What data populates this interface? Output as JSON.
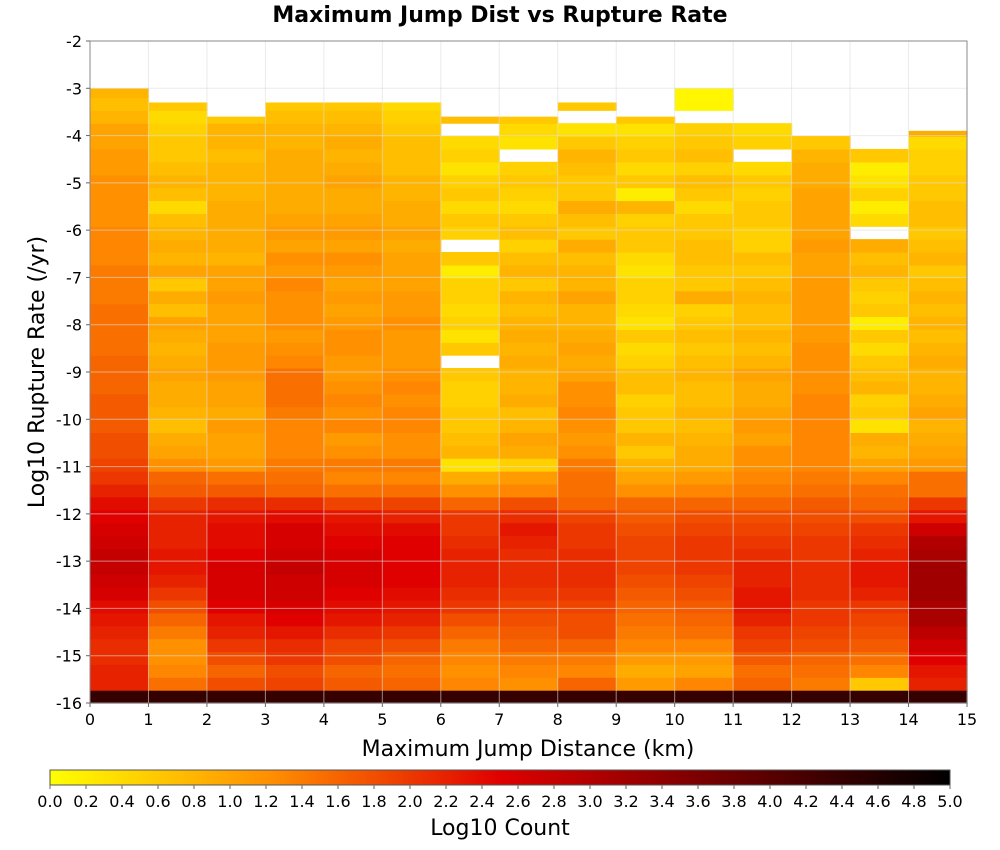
{
  "chart_data": {
    "type": "heatmap",
    "title": "Maximum Jump Dist vs Rupture Rate",
    "xlabel": "Maximum Jump Distance (km)",
    "ylabel": "Log10 Rupture Rate (/yr)",
    "xlim": [
      0,
      15
    ],
    "ylim": [
      -16,
      -2
    ],
    "x_ticks": [
      "0",
      "1",
      "2",
      "3",
      "4",
      "5",
      "6",
      "7",
      "8",
      "9",
      "10",
      "11",
      "12",
      "13",
      "14",
      "15"
    ],
    "y_ticks": [
      "-2",
      "-3",
      "-4",
      "-5",
      "-6",
      "-7",
      "-8",
      "-9",
      "-10",
      "-11",
      "-12",
      "-13",
      "-14",
      "-15",
      "-16"
    ],
    "x_bin_width": 1,
    "y_bin_height": 0.2725,
    "y_bin_start": -16,
    "colorbar": {
      "label": "Log10 Count",
      "min": 0.0,
      "max": 5.0,
      "ticks": [
        "0.0",
        "0.2",
        "0.4",
        "0.6",
        "0.8",
        "1.0",
        "1.2",
        "1.4",
        "1.6",
        "1.8",
        "2.0",
        "2.2",
        "2.4",
        "2.6",
        "2.8",
        "3.0",
        "3.2",
        "3.4",
        "3.6",
        "3.8",
        "4.0",
        "4.2",
        "4.4",
        "4.6",
        "4.8",
        "5.0"
      ],
      "colors": [
        "#ffff00",
        "#ff8c00",
        "#e00000",
        "#6e0000",
        "#000000"
      ]
    },
    "grid": true,
    "note_empty_cells": "white",
    "columns": [
      {
        "x": 0.5,
        "ymax": -3.0,
        "values": [
          4.4,
          2.2,
          2.2,
          2.1,
          2.1,
          2.2,
          2.3,
          2.4,
          2.6,
          2.7,
          2.8,
          2.8,
          2.7,
          2.6,
          2.5,
          2.4,
          2.2,
          2.0,
          1.9,
          1.8,
          1.8,
          1.7,
          1.7,
          1.7,
          1.6,
          1.6,
          1.6,
          1.5,
          1.5,
          1.5,
          1.5,
          1.4,
          1.4,
          1.4,
          1.3,
          1.3,
          1.3,
          1.2,
          1.2,
          1.2,
          1.2,
          1.1,
          1.1,
          1.0,
          1.0,
          0.8,
          0.7,
          0.8,
          0.5
        ]
      },
      {
        "x": 1.5,
        "ymax": -3.3,
        "values": [
          4.4,
          1.5,
          1.3,
          1.2,
          1.2,
          1.4,
          1.6,
          1.8,
          2.0,
          2.2,
          2.3,
          2.3,
          2.2,
          2.2,
          2.2,
          2.0,
          1.7,
          1.6,
          1.2,
          1.0,
          0.9,
          0.7,
          0.8,
          0.9,
          0.9,
          1.0,
          0.9,
          0.8,
          0.9,
          1.0,
          0.7,
          0.9,
          0.6,
          1.0,
          0.8,
          0.9,
          0.8,
          0.7,
          0.4,
          0.7,
          0.8,
          0.7,
          0.6,
          0.6,
          0.5,
          0.4,
          0.6,
          0.3
        ]
      },
      {
        "x": 2.5,
        "ymax": -3.6,
        "values": [
          4.4,
          1.8,
          1.6,
          1.8,
          2.0,
          2.2,
          2.3,
          2.5,
          2.6,
          2.6,
          2.6,
          2.5,
          2.4,
          2.4,
          2.3,
          2.1,
          1.7,
          1.5,
          1.1,
          1.0,
          1.0,
          1.1,
          0.9,
          1.0,
          1.0,
          1.1,
          1.1,
          1.1,
          1.0,
          1.0,
          1.0,
          1.1,
          1.0,
          1.0,
          0.8,
          0.9,
          0.9,
          0.9,
          0.9,
          0.8,
          0.8,
          0.8,
          0.7,
          0.8,
          0.8,
          0.6
        ]
      },
      {
        "x": 3.5,
        "ymax": -3.3,
        "values": [
          4.4,
          1.9,
          1.8,
          2.0,
          2.1,
          2.3,
          2.5,
          2.6,
          2.7,
          2.7,
          2.8,
          2.7,
          2.6,
          2.6,
          2.4,
          2.1,
          1.6,
          1.5,
          1.4,
          1.3,
          1.3,
          1.3,
          1.4,
          1.5,
          1.5,
          1.5,
          1.3,
          1.2,
          1.1,
          1.2,
          1.2,
          1.2,
          1.3,
          1.1,
          1.2,
          1.0,
          1.1,
          1.0,
          0.9,
          0.9,
          0.9,
          0.9,
          0.9,
          0.8,
          0.8,
          0.7,
          0.6,
          0.5
        ]
      },
      {
        "x": 4.5,
        "ymax": -3.3,
        "values": [
          4.4,
          1.7,
          1.6,
          1.8,
          1.9,
          2.1,
          2.3,
          2.4,
          2.5,
          2.6,
          2.6,
          2.6,
          2.5,
          2.4,
          2.3,
          1.9,
          1.5,
          1.3,
          1.4,
          1.2,
          1.1,
          1.3,
          1.2,
          1.3,
          1.2,
          1.1,
          1.1,
          1.2,
          1.2,
          1.1,
          1.0,
          1.1,
          1.0,
          1.1,
          1.2,
          1.0,
          1.1,
          1.0,
          0.9,
          0.9,
          1.0,
          0.9,
          0.8,
          0.9,
          0.8,
          0.7,
          0.6,
          0.5
        ]
      },
      {
        "x": 5.5,
        "ymax": -3.3,
        "values": [
          4.4,
          1.6,
          1.5,
          1.6,
          1.8,
          2.0,
          2.2,
          2.3,
          2.4,
          2.5,
          2.5,
          2.5,
          2.5,
          2.4,
          2.2,
          1.9,
          1.5,
          1.3,
          1.4,
          1.2,
          1.2,
          1.3,
          1.3,
          1.2,
          1.3,
          1.2,
          1.1,
          1.1,
          1.1,
          1.2,
          1.1,
          1.1,
          1.0,
          1.0,
          1.0,
          0.9,
          1.0,
          0.9,
          0.9,
          0.8,
          0.8,
          0.7,
          0.7,
          0.7,
          0.6,
          0.5,
          0.4,
          0.3
        ]
      },
      {
        "x": 6.5,
        "ymax": -3.6,
        "values": [
          4.4,
          1.3,
          1.2,
          1.3,
          1.4,
          1.6,
          1.8,
          2.0,
          2.1,
          2.2,
          2.2,
          2.2,
          2.1,
          2.0,
          2.0,
          1.6,
          1.2,
          0.9,
          0.3,
          0.8,
          0.7,
          0.6,
          0.6,
          0.5,
          0.5,
          0.6,
          null,
          0.6,
          0.3,
          0.5,
          0.4,
          0.5,
          0.5,
          0.2,
          0.6,
          null,
          0.5,
          0.6,
          0.4,
          0.6,
          0.5,
          0.3,
          0.5,
          0.4,
          null,
          0.7,
          0.6,
          0.6
        ]
      },
      {
        "x": 7.5,
        "ymax": -3.6,
        "values": [
          4.4,
          1.2,
          1.3,
          1.4,
          1.6,
          1.7,
          1.8,
          1.9,
          2.0,
          2.1,
          2.1,
          2.1,
          2.2,
          2.3,
          2.1,
          1.8,
          1.3,
          1.1,
          0.5,
          0.9,
          1.0,
          0.8,
          0.7,
          0.9,
          0.8,
          0.8,
          0.9,
          0.8,
          0.9,
          0.8,
          0.7,
          0.8,
          0.6,
          0.8,
          0.7,
          0.5,
          0.7,
          0.6,
          0.4,
          0.5,
          0.6,
          0.5,
          null,
          0.3,
          0.4,
          0.6,
          0.5,
          0.3
        ]
      },
      {
        "x": 8.5,
        "ymax": -3.3,
        "values": [
          4.4,
          1.6,
          1.3,
          1.4,
          1.6,
          1.8,
          1.8,
          1.9,
          2.0,
          2.1,
          2.1,
          2.1,
          2.0,
          2.0,
          1.9,
          1.6,
          1.5,
          1.5,
          1.4,
          1.2,
          1.1,
          1.2,
          1.3,
          1.2,
          1.2,
          1.0,
          0.9,
          1.0,
          0.9,
          0.8,
          0.8,
          1.0,
          0.8,
          0.8,
          0.7,
          0.9,
          0.6,
          0.7,
          0.9,
          0.6,
          0.6,
          0.7,
          0.8,
          0.6,
          0.3,
          null,
          0.6
        ]
      },
      {
        "x": 9.5,
        "ymax": -3.6,
        "values": [
          4.4,
          1.1,
          0.9,
          1.1,
          1.3,
          1.4,
          1.5,
          1.6,
          1.7,
          1.8,
          1.9,
          1.9,
          1.9,
          1.8,
          1.7,
          1.6,
          1.2,
          1.0,
          0.8,
          0.6,
          0.8,
          0.6,
          0.6,
          0.5,
          0.7,
          0.7,
          0.5,
          0.4,
          0.6,
          0.3,
          0.4,
          0.5,
          0.5,
          0.3,
          0.4,
          0.6,
          0.6,
          0.5,
          0.8,
          0.2,
          0.6,
          0.4,
          0.6,
          0.5,
          0.3,
          0.6,
          null,
          0.4
        ]
      },
      {
        "x": 10.5,
        "ymax": -3.0,
        "values": [
          4.4,
          1.3,
          1.0,
          1.1,
          1.3,
          1.5,
          1.6,
          1.7,
          1.8,
          1.9,
          2.0,
          2.0,
          2.0,
          1.9,
          1.8,
          1.6,
          1.3,
          1.1,
          0.9,
          0.9,
          0.8,
          0.7,
          0.8,
          0.7,
          0.7,
          0.8,
          0.7,
          0.6,
          0.7,
          0.6,
          0.5,
          0.9,
          0.6,
          0.6,
          0.7,
          0.7,
          0.6,
          0.6,
          0.4,
          0.6,
          0.7,
          0.5,
          0.7,
          0.6,
          0.5,
          null,
          0.1,
          0.1
        ]
      },
      {
        "x": 11.5,
        "ymax": -3.6,
        "values": [
          4.4,
          1.6,
          1.5,
          1.7,
          1.9,
          2.0,
          2.2,
          2.3,
          2.3,
          2.2,
          2.2,
          2.1,
          2.0,
          1.9,
          1.8,
          1.6,
          1.4,
          1.3,
          1.2,
          1.2,
          1.0,
          1.1,
          1.0,
          0.9,
          0.9,
          1.0,
          0.8,
          0.7,
          0.8,
          0.7,
          0.7,
          0.8,
          0.7,
          0.6,
          0.7,
          0.5,
          0.5,
          0.6,
          0.6,
          0.5,
          0.6,
          0.4,
          null,
          0.5,
          0.4
        ]
      },
      {
        "x": 12.5,
        "ymax": -3.9,
        "values": [
          4.4,
          1.4,
          1.5,
          1.6,
          1.8,
          1.9,
          2.0,
          2.0,
          2.1,
          2.1,
          2.1,
          2.0,
          2.0,
          1.9,
          1.8,
          1.7,
          1.5,
          1.4,
          1.3,
          1.3,
          1.3,
          1.3,
          1.3,
          1.3,
          1.2,
          1.2,
          1.2,
          1.2,
          1.1,
          1.1,
          1.1,
          1.1,
          1.1,
          1.0,
          1.0,
          1.1,
          1.0,
          1.0,
          1.0,
          1.0,
          0.9,
          0.9,
          0.8,
          0.6
        ]
      },
      {
        "x": 13.5,
        "ymax": -3.9,
        "values": [
          4.4,
          0.6,
          1.3,
          1.5,
          1.7,
          1.8,
          1.9,
          2.0,
          2.2,
          2.3,
          2.3,
          2.2,
          2.1,
          2.0,
          1.8,
          1.6,
          1.5,
          1.3,
          1.0,
          0.8,
          0.9,
          0.3,
          0.6,
          0.5,
          0.8,
          0.7,
          0.6,
          0.4,
          0.6,
          0.2,
          0.6,
          0.5,
          0.6,
          0.8,
          0.7,
          0.9,
          null,
          0.4,
          0.2,
          0.5,
          0.3,
          0.2,
          0.6,
          null,
          null,
          0.1,
          0.1
        ]
      },
      {
        "x": 14.5,
        "ymax": -3.9,
        "values": [
          4.4,
          2.2,
          2.3,
          2.5,
          2.7,
          2.9,
          3.1,
          3.1,
          3.2,
          3.2,
          3.2,
          3.1,
          3.0,
          2.7,
          2.3,
          2.0,
          1.5,
          1.5,
          1.1,
          1.0,
          0.9,
          0.8,
          1.0,
          0.9,
          0.8,
          0.8,
          0.9,
          0.8,
          0.7,
          0.8,
          0.7,
          0.8,
          0.7,
          0.6,
          0.8,
          0.7,
          0.6,
          0.7,
          0.7,
          0.6,
          0.6,
          0.5,
          0.5,
          0.4,
          0.9
        ]
      }
    ]
  }
}
